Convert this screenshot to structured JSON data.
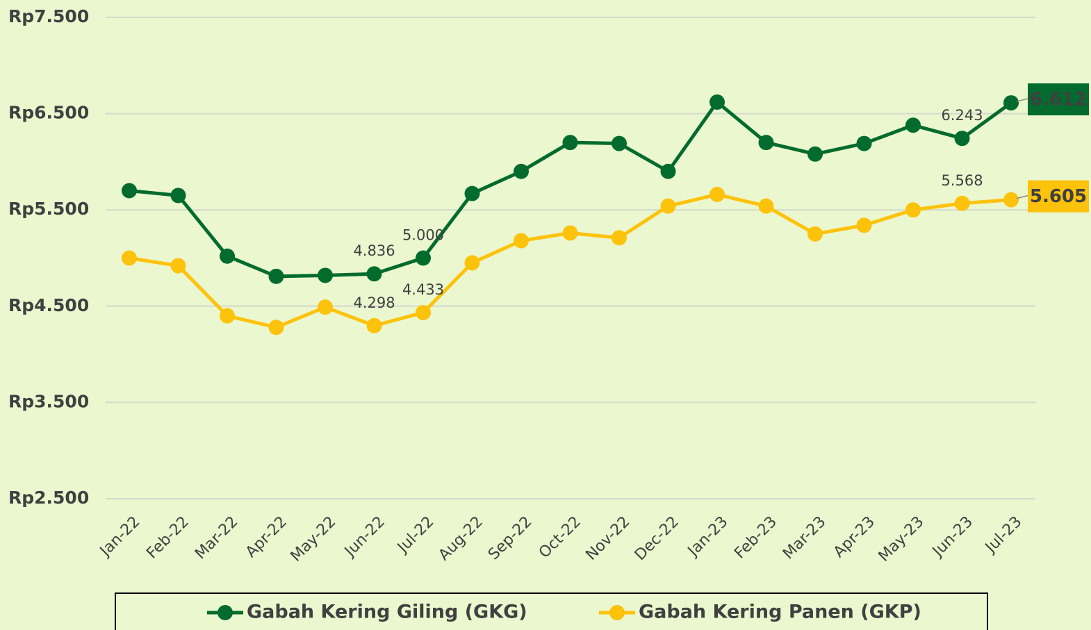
{
  "chart_data": {
    "type": "line",
    "categories": [
      "Jan-22",
      "Feb-22",
      "Mar-22",
      "Apr-22",
      "May-22",
      "Jun-22",
      "Jul-22",
      "Aug-22",
      "Sep-22",
      "Oct-22",
      "Nov-22",
      "Dec-22",
      "Jan-23",
      "Feb-23",
      "Mar-23",
      "Apr-23",
      "May-23",
      "Jun-23",
      "Jul-23"
    ],
    "series": [
      {
        "name": "Gabah Kering Giling (GKG)",
        "color": "#036b2e",
        "values": [
          5700,
          5650,
          5020,
          4810,
          4820,
          4836,
          5000,
          5670,
          5900,
          6200,
          6190,
          5900,
          6620,
          6200,
          6080,
          6190,
          6380,
          6243,
          6612
        ],
        "value_labels": [
          null,
          null,
          null,
          null,
          null,
          "4.836",
          "5.000",
          null,
          null,
          null,
          null,
          null,
          null,
          null,
          null,
          null,
          null,
          "6.243",
          "6.612"
        ]
      },
      {
        "name": "Gabah Kering Panen (GKP)",
        "color": "#fdc20c",
        "values": [
          5000,
          4920,
          4400,
          4280,
          4490,
          4298,
          4433,
          4950,
          5180,
          5260,
          5210,
          5540,
          5660,
          5540,
          5250,
          5340,
          5500,
          5568,
          5605
        ],
        "value_labels": [
          null,
          null,
          null,
          null,
          null,
          "4.298",
          "4.433",
          null,
          null,
          null,
          null,
          null,
          null,
          null,
          null,
          null,
          null,
          "5.568",
          "5.605"
        ]
      }
    ],
    "ylim": [
      2500,
      7500
    ],
    "yticks": [
      {
        "value": 2500,
        "label": "Rp2.500"
      },
      {
        "value": 3500,
        "label": "Rp3.500"
      },
      {
        "value": 4500,
        "label": "Rp4.500"
      },
      {
        "value": 5500,
        "label": "Rp5.500"
      },
      {
        "value": 6500,
        "label": "Rp6.500"
      },
      {
        "value": 7500,
        "label": "Rp7.500"
      }
    ],
    "grid": true,
    "legend": "bottom"
  }
}
